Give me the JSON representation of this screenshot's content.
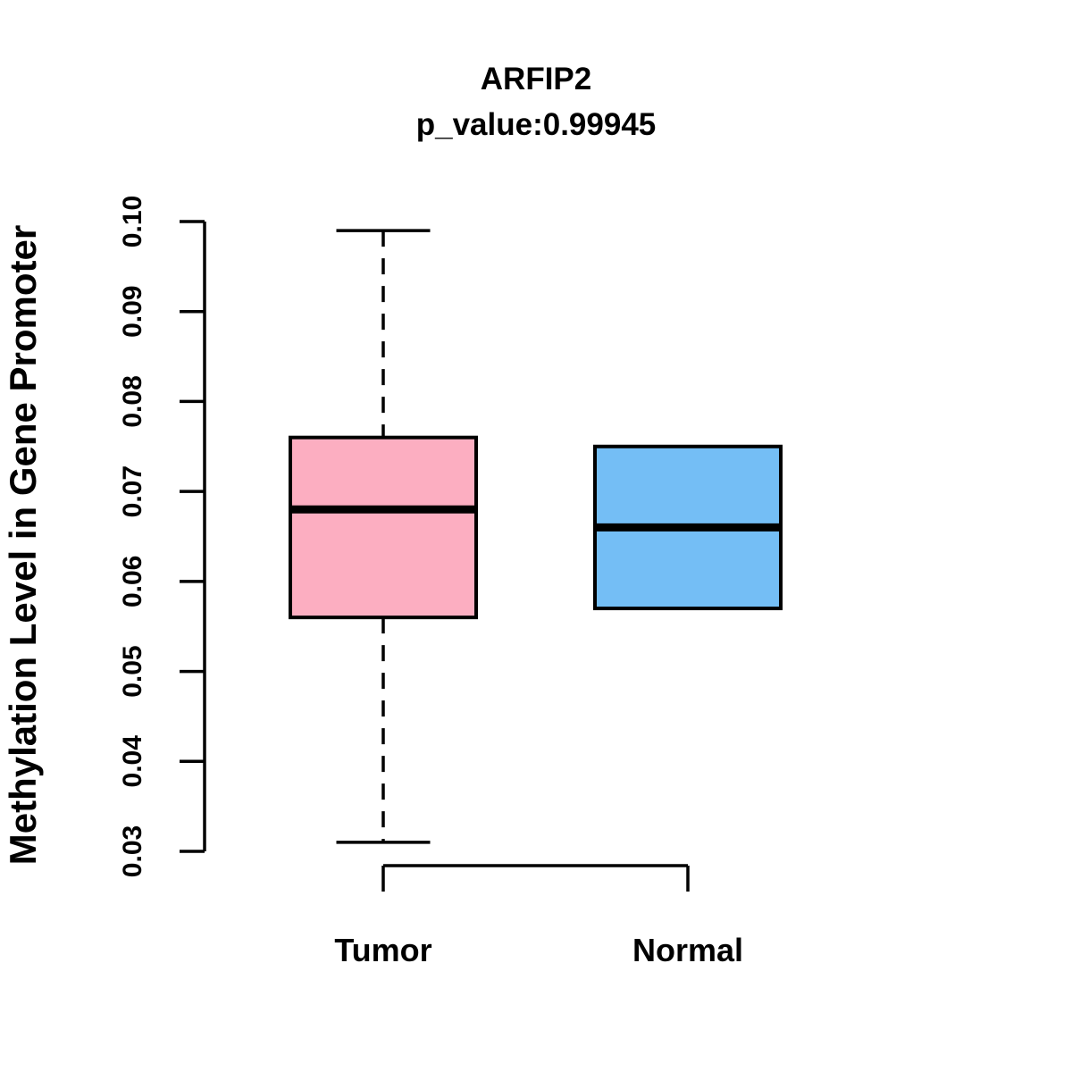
{
  "chart_data": {
    "type": "boxplot",
    "title": "ARFIP2",
    "subtitle": "p_value:0.99945",
    "ylabel": "Methylation Level in Gene Promoter",
    "xlabel": "",
    "ylim": [
      0.03,
      0.1
    ],
    "ytick_labels": [
      "0.03",
      "0.04",
      "0.05",
      "0.06",
      "0.07",
      "0.08",
      "0.09",
      "0.10"
    ],
    "categories": [
      "Tumor",
      "Normal"
    ],
    "series": [
      {
        "name": "Tumor",
        "fill_color": "#FCAEC1",
        "stats": {
          "lower_whisker": 0.031,
          "q1": 0.056,
          "median": 0.068,
          "q3": 0.076,
          "upper_whisker": 0.099
        }
      },
      {
        "name": "Normal",
        "fill_color": "#74BEF5",
        "stats": {
          "lower_whisker": 0.057,
          "q1": 0.057,
          "median": 0.066,
          "q3": 0.075,
          "upper_whisker": 0.075
        }
      }
    ],
    "style": {
      "box_border_color": "#000000",
      "median_color": "#000000",
      "axis_color": "#000000",
      "background": "#FFFFFF",
      "whisker_style": "dashed",
      "grid": "off",
      "legend": "none"
    }
  }
}
